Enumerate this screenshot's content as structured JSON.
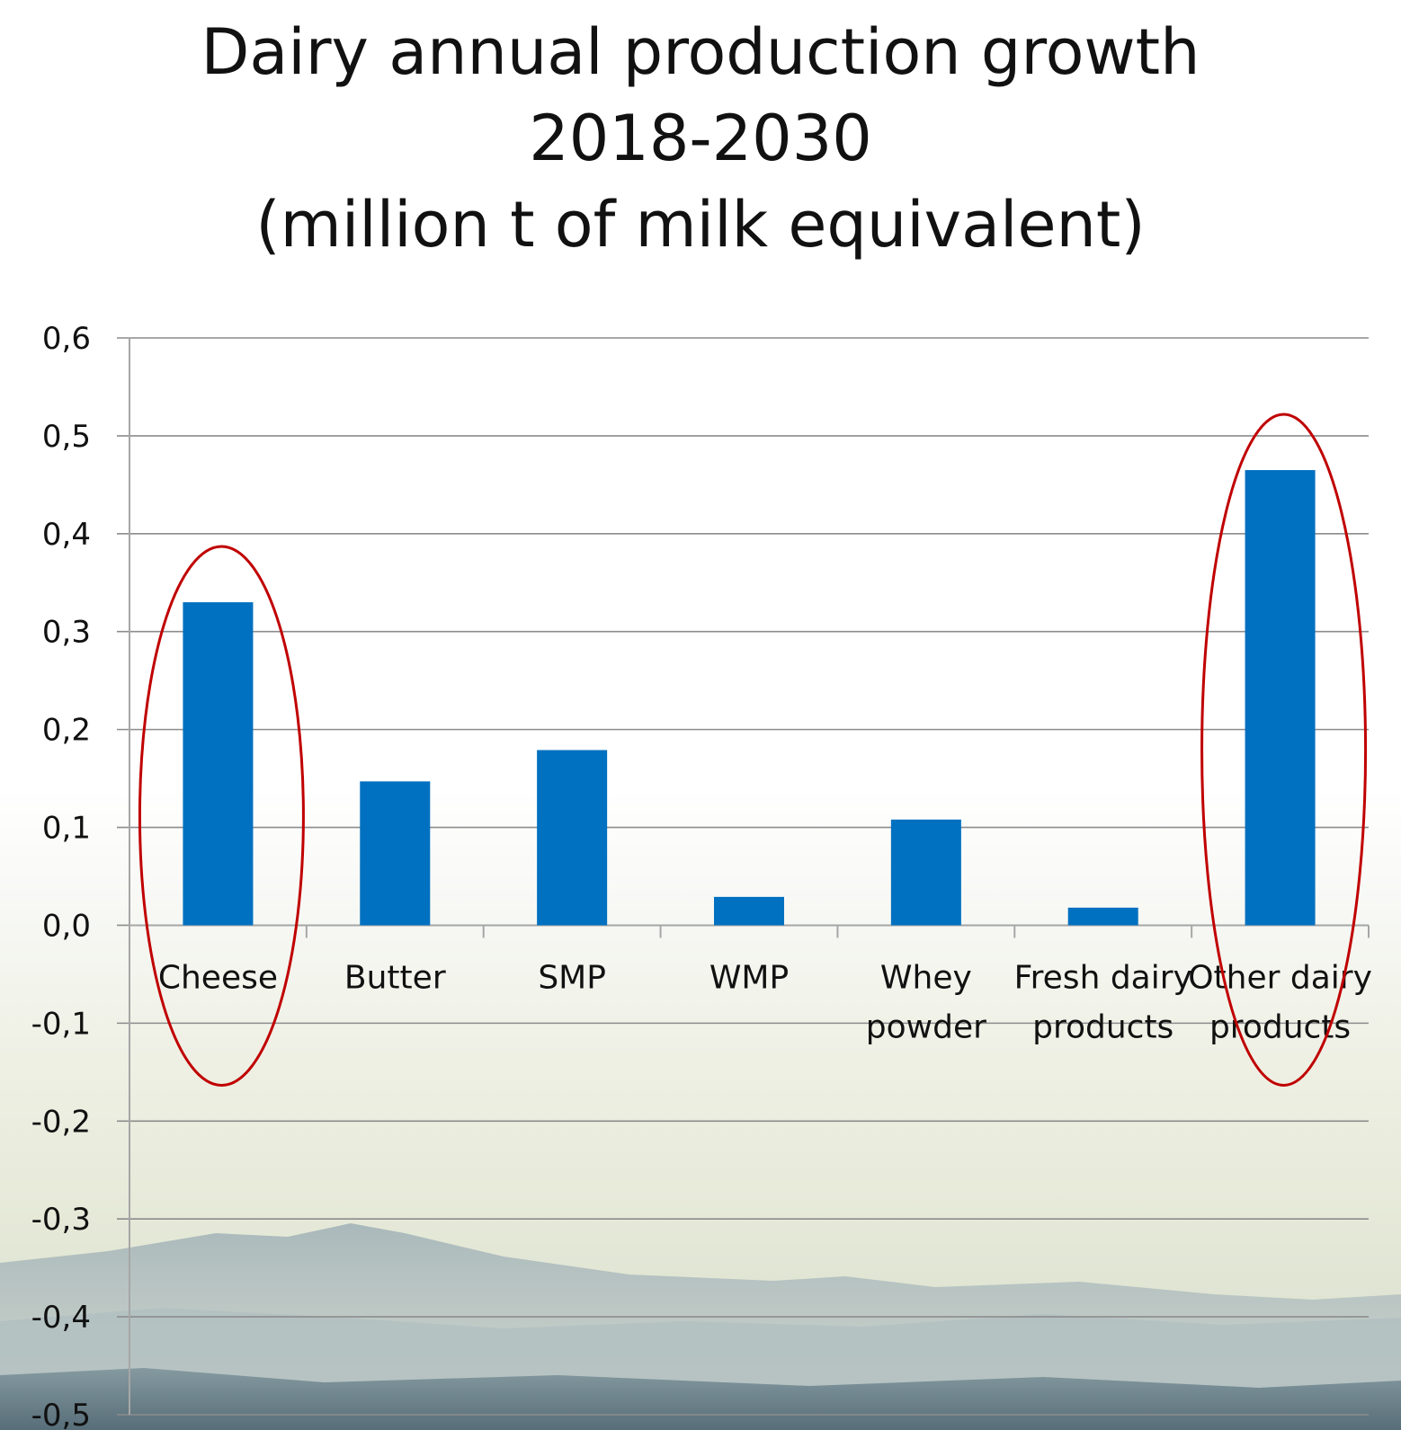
{
  "title_lines": [
    "Dairy annual production growth",
    "2018-2030",
    "(million t of milk equivalent)"
  ],
  "colors": {
    "bar": "#0070c0",
    "gridline": "#8c8c8c",
    "axis": "#a6a6a6",
    "highlight_ellipse": "#c00000",
    "text": "#111111"
  },
  "chart_data": {
    "type": "bar",
    "categories": [
      "Cheese",
      "Butter",
      "SMP",
      "WMP",
      "Whey powder",
      "Fresh dairy products",
      "Other dairy products"
    ],
    "category_label_lines": [
      [
        "Cheese"
      ],
      [
        "Butter"
      ],
      [
        "SMP"
      ],
      [
        "WMP"
      ],
      [
        "Whey",
        "powder"
      ],
      [
        "Fresh dairy",
        "products"
      ],
      [
        "Other dairy",
        "products"
      ]
    ],
    "values": [
      0.33,
      0.147,
      0.179,
      0.029,
      0.108,
      0.018,
      0.465
    ],
    "ylim": [
      -0.5,
      0.6
    ],
    "yticks": [
      0.6,
      0.5,
      0.4,
      0.3,
      0.2,
      0.1,
      0.0,
      -0.1,
      -0.2,
      -0.3,
      -0.4,
      -0.5
    ],
    "ytick_labels": [
      "0,6",
      "0,5",
      "0,4",
      "0,3",
      "0,2",
      "0,1",
      "0,0",
      "-0,1",
      "-0,2",
      "-0,3",
      "-0,4",
      "-0,5"
    ],
    "grid": true,
    "legend": "none",
    "highlighted_categories": [
      "Cheese",
      "Other dairy products"
    ],
    "xlabel": "",
    "ylabel": ""
  }
}
